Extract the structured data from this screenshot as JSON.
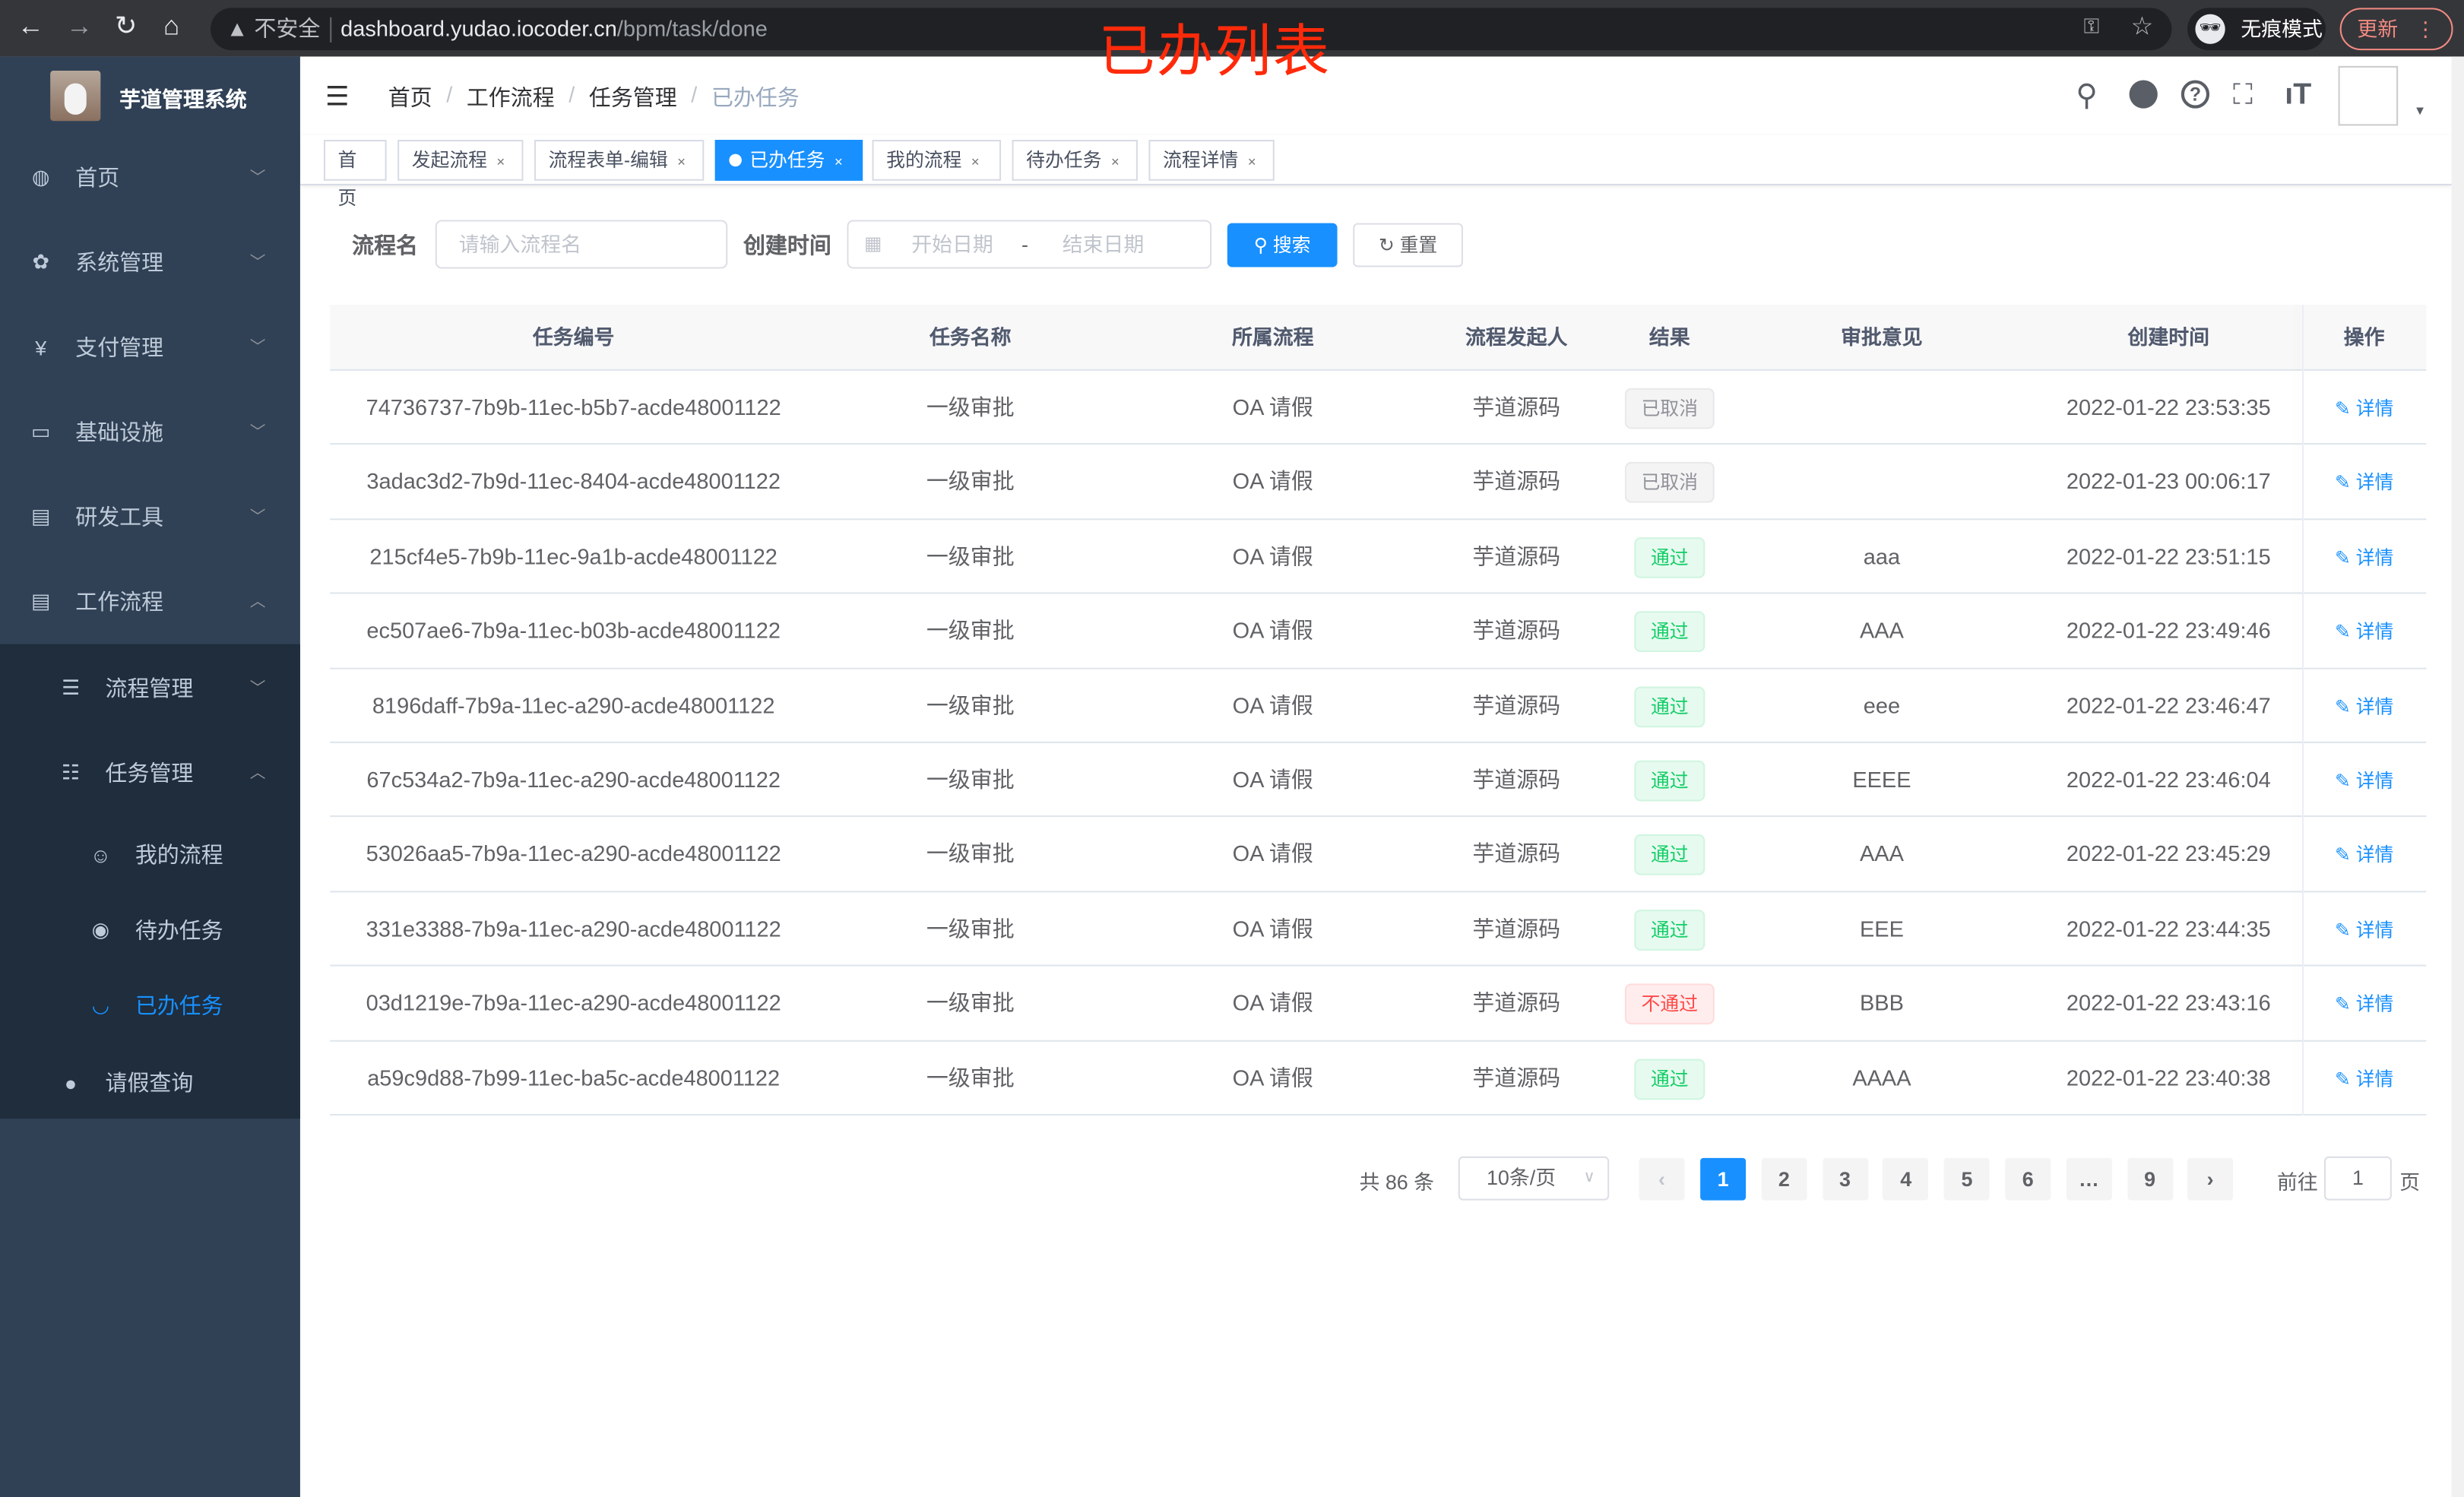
{
  "browser": {
    "back": "←",
    "forward": "→",
    "reload": "↻",
    "home": "⌂",
    "security": "不安全",
    "url_host": "dashboard.yudao.iocoder.cn",
    "url_path": "/bpm/task/done",
    "key_icon": "key-icon",
    "star_icon": "star-icon",
    "incognito": "无痕模式",
    "update": "更新"
  },
  "overlay_title": "已办列表",
  "sidebar": {
    "brand": "芋道管理系统",
    "items": [
      {
        "label": "首页",
        "icon": "dashboard-icon"
      },
      {
        "label": "系统管理",
        "icon": "gear-icon"
      },
      {
        "label": "支付管理",
        "icon": "yen-icon"
      },
      {
        "label": "基础设施",
        "icon": "monitor-icon"
      },
      {
        "label": "研发工具",
        "icon": "toolbox-icon"
      },
      {
        "label": "工作流程",
        "icon": "toolbox-icon"
      },
      {
        "label": "流程管理",
        "icon": "tree-icon"
      },
      {
        "label": "任务管理",
        "icon": "list-icon"
      },
      {
        "label": "我的流程",
        "icon": "chat-icon"
      },
      {
        "label": "待办任务",
        "icon": "eye-icon"
      },
      {
        "label": "已办任务",
        "icon": "eye-closed-icon",
        "active": true
      },
      {
        "label": "请假查询",
        "icon": "user-icon"
      }
    ]
  },
  "breadcrumb": [
    "首页",
    "工作流程",
    "任务管理",
    "已办任务"
  ],
  "tags": [
    {
      "label": "首页"
    },
    {
      "label": "发起流程"
    },
    {
      "label": "流程表单-编辑"
    },
    {
      "label": "已办任务",
      "active": true
    },
    {
      "label": "我的流程"
    },
    {
      "label": "待办任务"
    },
    {
      "label": "流程详情"
    }
  ],
  "search": {
    "name_label": "流程名",
    "name_placeholder": "请输入流程名",
    "time_label": "创建时间",
    "start_placeholder": "开始日期",
    "range_sep": "-",
    "end_placeholder": "结束日期",
    "search_btn": "搜索",
    "reset_btn": "重置"
  },
  "table": {
    "columns": [
      "任务编号",
      "任务名称",
      "所属流程",
      "流程发起人",
      "结果",
      "审批意见",
      "创建时间",
      "操作"
    ],
    "action_label": "详情",
    "rows": [
      {
        "id": "74736737-7b9b-11ec-b5b7-acde48001122",
        "name": "一级审批",
        "process": "OA 请假",
        "starter": "芋道源码",
        "result": "已取消",
        "status": "cancel",
        "comment": "",
        "time": "2022-01-22 23:53:35"
      },
      {
        "id": "3adac3d2-7b9d-11ec-8404-acde48001122",
        "name": "一级审批",
        "process": "OA 请假",
        "starter": "芋道源码",
        "result": "已取消",
        "status": "cancel",
        "comment": "",
        "time": "2022-01-23 00:06:17"
      },
      {
        "id": "215cf4e5-7b9b-11ec-9a1b-acde48001122",
        "name": "一级审批",
        "process": "OA 请假",
        "starter": "芋道源码",
        "result": "通过",
        "status": "pass",
        "comment": "aaa",
        "time": "2022-01-22 23:51:15"
      },
      {
        "id": "ec507ae6-7b9a-11ec-b03b-acde48001122",
        "name": "一级审批",
        "process": "OA 请假",
        "starter": "芋道源码",
        "result": "通过",
        "status": "pass",
        "comment": "AAA",
        "time": "2022-01-22 23:49:46"
      },
      {
        "id": "8196daff-7b9a-11ec-a290-acde48001122",
        "name": "一级审批",
        "process": "OA 请假",
        "starter": "芋道源码",
        "result": "通过",
        "status": "pass",
        "comment": "eee",
        "time": "2022-01-22 23:46:47"
      },
      {
        "id": "67c534a2-7b9a-11ec-a290-acde48001122",
        "name": "一级审批",
        "process": "OA 请假",
        "starter": "芋道源码",
        "result": "通过",
        "status": "pass",
        "comment": "EEEE",
        "time": "2022-01-22 23:46:04"
      },
      {
        "id": "53026aa5-7b9a-11ec-a290-acde48001122",
        "name": "一级审批",
        "process": "OA 请假",
        "starter": "芋道源码",
        "result": "通过",
        "status": "pass",
        "comment": "AAA",
        "time": "2022-01-22 23:45:29"
      },
      {
        "id": "331e3388-7b9a-11ec-a290-acde48001122",
        "name": "一级审批",
        "process": "OA 请假",
        "starter": "芋道源码",
        "result": "通过",
        "status": "pass",
        "comment": "EEE",
        "time": "2022-01-22 23:44:35"
      },
      {
        "id": "03d1219e-7b9a-11ec-a290-acde48001122",
        "name": "一级审批",
        "process": "OA 请假",
        "starter": "芋道源码",
        "result": "不通过",
        "status": "fail",
        "comment": "BBB",
        "time": "2022-01-22 23:43:16"
      },
      {
        "id": "a59c9d88-7b99-11ec-ba5c-acde48001122",
        "name": "一级审批",
        "process": "OA 请假",
        "starter": "芋道源码",
        "result": "通过",
        "status": "pass",
        "comment": "AAAA",
        "time": "2022-01-22 23:40:38"
      }
    ]
  },
  "pagination": {
    "total": "共 86 条",
    "page_size": "10条/页",
    "pages": [
      "1",
      "2",
      "3",
      "4",
      "5",
      "6",
      "…",
      "9"
    ],
    "current": "1",
    "goto_label": "前往",
    "goto_value": "1",
    "goto_suffix": "页"
  },
  "colors": {
    "sidebar": "#304156",
    "submenu": "#1f2d3d",
    "primary": "#1890ff",
    "pass": "#13ce66",
    "fail": "#ff4949"
  }
}
